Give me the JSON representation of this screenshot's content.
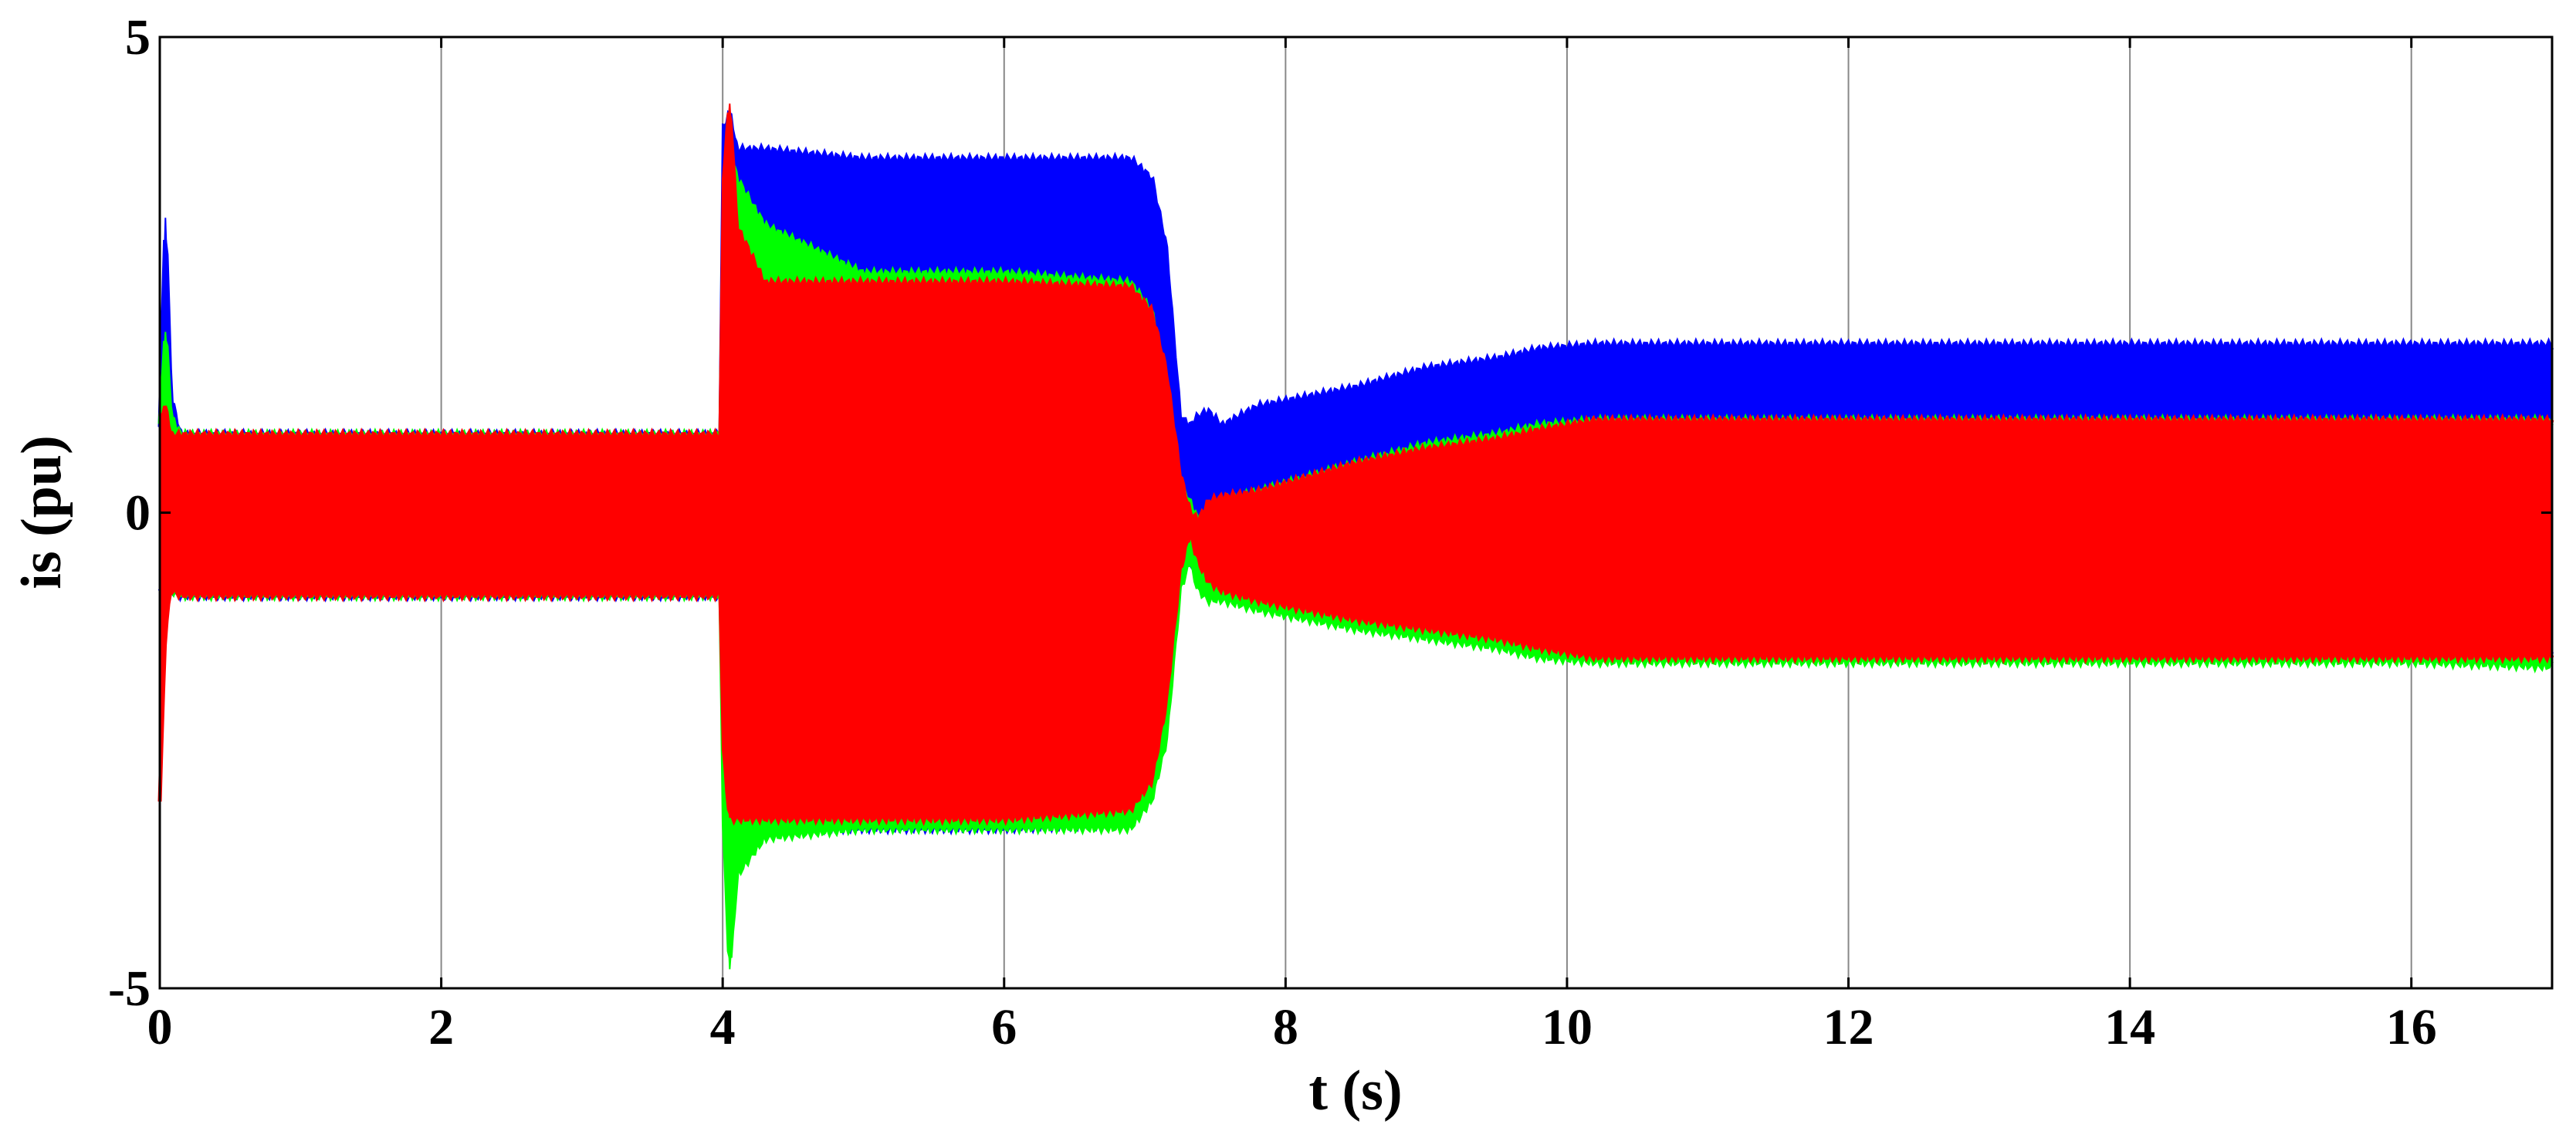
{
  "chart_data": {
    "type": "area",
    "title": "",
    "xlabel": "t (s)",
    "ylabel": "is (pu)",
    "xlim": [
      0,
      17
    ],
    "ylim": [
      -5,
      5
    ],
    "xticks": [
      0,
      2,
      4,
      6,
      8,
      10,
      12,
      14,
      16
    ],
    "xtick_labels": [
      "0",
      "2",
      "4",
      "6",
      "8",
      "10",
      "12",
      "14",
      "16"
    ],
    "yticks": [
      -5,
      0,
      5
    ],
    "ytick_labels": [
      "-5",
      "0",
      "5"
    ],
    "grid": "vertical",
    "legend": "none",
    "series": [
      {
        "color": "#0000ff",
        "description": "oscillating phase current envelope",
        "x": [
          0,
          0.04,
          0.08,
          0.15,
          3.99,
          4.0,
          4.05,
          4.1,
          4.3,
          5.0,
          6.0,
          6.9,
          7.05,
          7.15,
          7.25,
          7.32,
          7.38,
          7.45,
          7.55,
          7.8,
          8.5,
          9.0,
          9.5,
          9.8,
          10.2,
          12,
          14,
          16,
          17
        ],
        "upper": [
          0.9,
          3.1,
          1.2,
          0.8,
          0.8,
          4.0,
          4.2,
          3.8,
          3.8,
          3.7,
          3.7,
          3.7,
          3.5,
          2.8,
          1.0,
          0.9,
          1.0,
          1.05,
          0.9,
          1.1,
          1.3,
          1.5,
          1.6,
          1.7,
          1.75,
          1.75,
          1.75,
          1.75,
          1.75
        ],
        "lower": [
          -0.8,
          -0.8,
          -0.8,
          -0.85,
          -0.85,
          -2.0,
          -2.8,
          -3.2,
          -3.3,
          -3.3,
          -3.3,
          -3.25,
          -2.8,
          -1.5,
          -0.4,
          -0.5,
          -0.7,
          -0.8,
          -0.8,
          -0.9,
          -1.1,
          -1.2,
          -1.35,
          -1.45,
          -1.5,
          -1.5,
          -1.5,
          -1.5,
          -1.5
        ]
      },
      {
        "color": "#00ff00",
        "description": "oscillating phase current envelope",
        "x": [
          0,
          0.04,
          0.08,
          0.15,
          3.99,
          4.0,
          4.05,
          4.1,
          4.3,
          5.0,
          6.0,
          6.9,
          7.05,
          7.15,
          7.25,
          7.32,
          7.38,
          7.45,
          7.55,
          7.8,
          8.5,
          9.0,
          9.5,
          9.8,
          10.2,
          12,
          14,
          16,
          17
        ],
        "upper": [
          0.9,
          1.9,
          1.0,
          0.8,
          0.8,
          3.2,
          3.8,
          3.5,
          3.0,
          2.5,
          2.5,
          2.4,
          2.1,
          1.4,
          0.3,
          0.1,
          -0.1,
          0.0,
          0.1,
          0.2,
          0.5,
          0.7,
          0.8,
          0.9,
          0.95,
          0.95,
          0.95,
          0.95,
          0.95
        ],
        "lower": [
          -0.8,
          -0.8,
          -0.8,
          -0.85,
          -0.85,
          -3.0,
          -4.8,
          -3.8,
          -3.4,
          -3.3,
          -3.3,
          -3.3,
          -3.0,
          -2.4,
          -0.8,
          -0.5,
          -0.8,
          -0.9,
          -0.9,
          -1.0,
          -1.2,
          -1.3,
          -1.4,
          -1.5,
          -1.55,
          -1.55,
          -1.55,
          -1.55,
          -1.6
        ]
      },
      {
        "color": "#ff0000",
        "description": "oscillating phase current envelope",
        "x": [
          0,
          0.04,
          0.08,
          0.15,
          3.99,
          4.0,
          4.05,
          4.1,
          4.3,
          5.0,
          6.0,
          6.9,
          7.05,
          7.15,
          7.25,
          7.32,
          7.38,
          7.45,
          7.55,
          7.8,
          8.5,
          9.0,
          9.5,
          9.8,
          10.2,
          12,
          14,
          16,
          17
        ],
        "upper": [
          1.0,
          1.1,
          0.8,
          0.8,
          0.8,
          3.4,
          4.3,
          3.0,
          2.4,
          2.4,
          2.4,
          2.35,
          2.1,
          1.5,
          0.4,
          0.0,
          -0.1,
          0.1,
          0.15,
          0.2,
          0.5,
          0.65,
          0.75,
          0.85,
          0.95,
          0.95,
          0.95,
          0.95,
          0.95
        ],
        "lower": [
          -3.0,
          -1.2,
          -0.8,
          -0.85,
          -0.85,
          -2.4,
          -3.2,
          -3.2,
          -3.2,
          -3.2,
          -3.2,
          -3.1,
          -2.8,
          -2.0,
          -0.6,
          -0.2,
          -0.5,
          -0.7,
          -0.8,
          -0.9,
          -1.1,
          -1.2,
          -1.3,
          -1.4,
          -1.5,
          -1.5,
          -1.5,
          -1.5,
          -1.5
        ]
      }
    ]
  }
}
